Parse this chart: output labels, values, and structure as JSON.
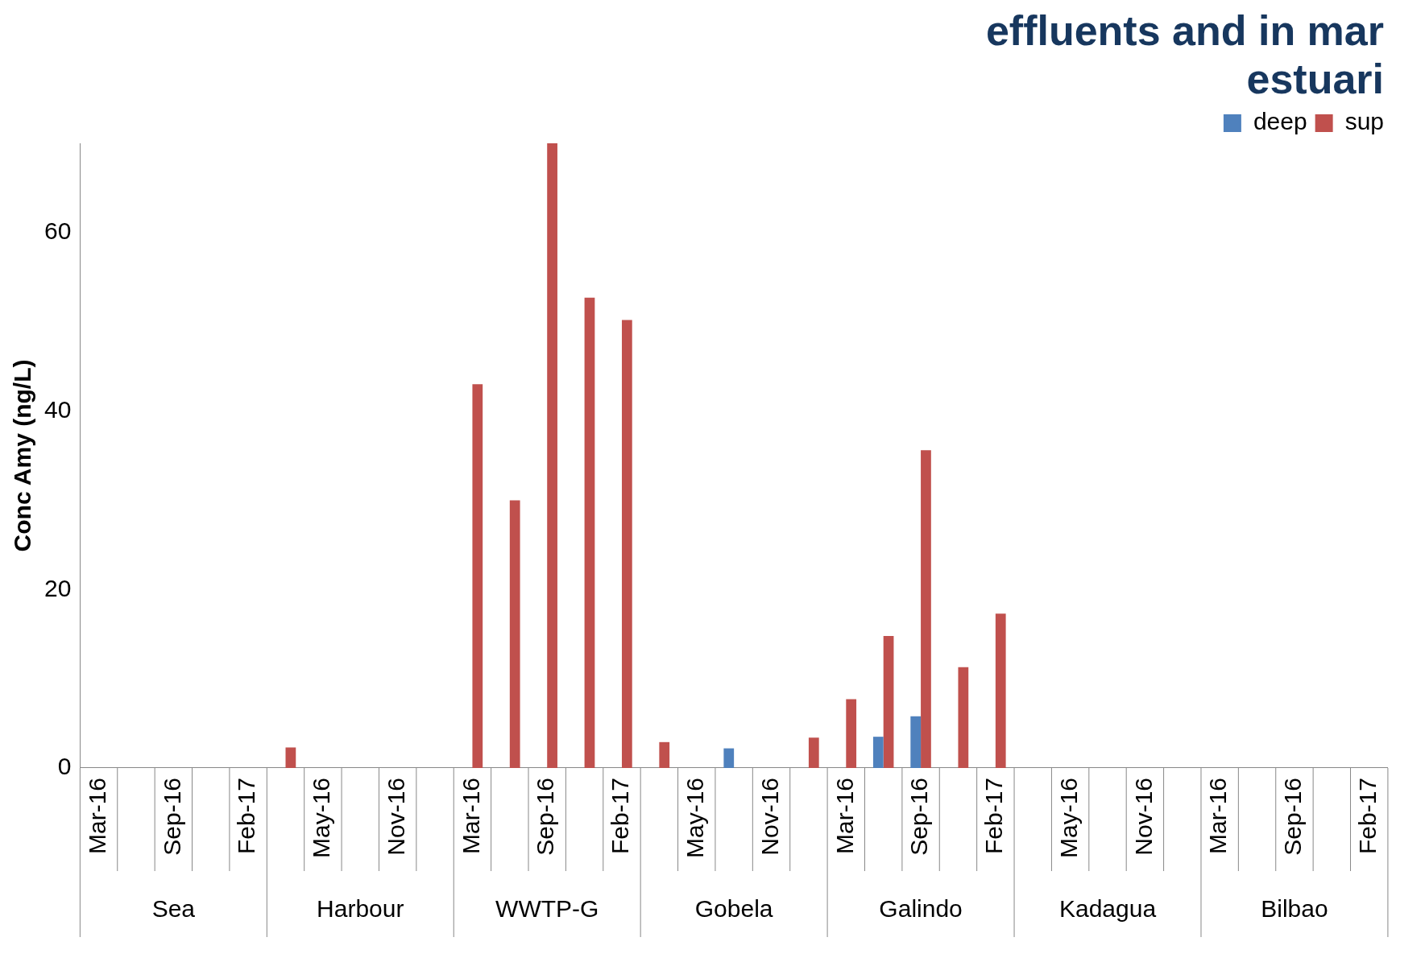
{
  "chart_data": {
    "type": "bar",
    "title": "effluents and in mar\nestuari",
    "ylabel": "Conc Amy (ng/L)",
    "categories": [
      "Mar-16",
      null,
      "Sep-16",
      null,
      "Feb-17",
      null,
      "May-16",
      null,
      "Nov-16",
      null,
      "Mar-16",
      null,
      "Sep-16",
      null,
      "Feb-17",
      null,
      "May-16",
      null,
      "Nov-16",
      null,
      "Mar-16",
      null,
      "Sep-16",
      null,
      "Feb-17",
      null,
      "May-16",
      null,
      "Nov-16",
      null,
      "Mar-16",
      null,
      "Sep-16",
      null,
      "Feb-17"
    ],
    "annotations": [
      "Sea",
      "Harbour",
      "WWTP-G",
      "Gobela",
      "Galindo",
      "Kadagua",
      "Bilbao"
    ],
    "series": [
      {
        "name": "deep",
        "color": "#4f81bd",
        "values": [
          null,
          null,
          null,
          null,
          null,
          null,
          null,
          null,
          null,
          null,
          null,
          null,
          null,
          null,
          null,
          null,
          null,
          2.2,
          null,
          null,
          null,
          3.5,
          5.8,
          null,
          null,
          null,
          null,
          null,
          null,
          null,
          null,
          null,
          null,
          null,
          null
        ]
      },
      {
        "name": "sup",
        "color": "#c0504d",
        "values": [
          null,
          null,
          null,
          null,
          null,
          2.3,
          null,
          null,
          null,
          null,
          43,
          30,
          70,
          52.7,
          50.2,
          2.9,
          null,
          null,
          null,
          3.4,
          7.7,
          14.8,
          35.6,
          11.3,
          17.3,
          null,
          null,
          null,
          null,
          null,
          null,
          null,
          null,
          null,
          null
        ]
      }
    ],
    "ylim": [
      0,
      70
    ],
    "yticks": [
      0,
      20,
      40,
      60
    ],
    "grid": false,
    "legend": "top right"
  }
}
